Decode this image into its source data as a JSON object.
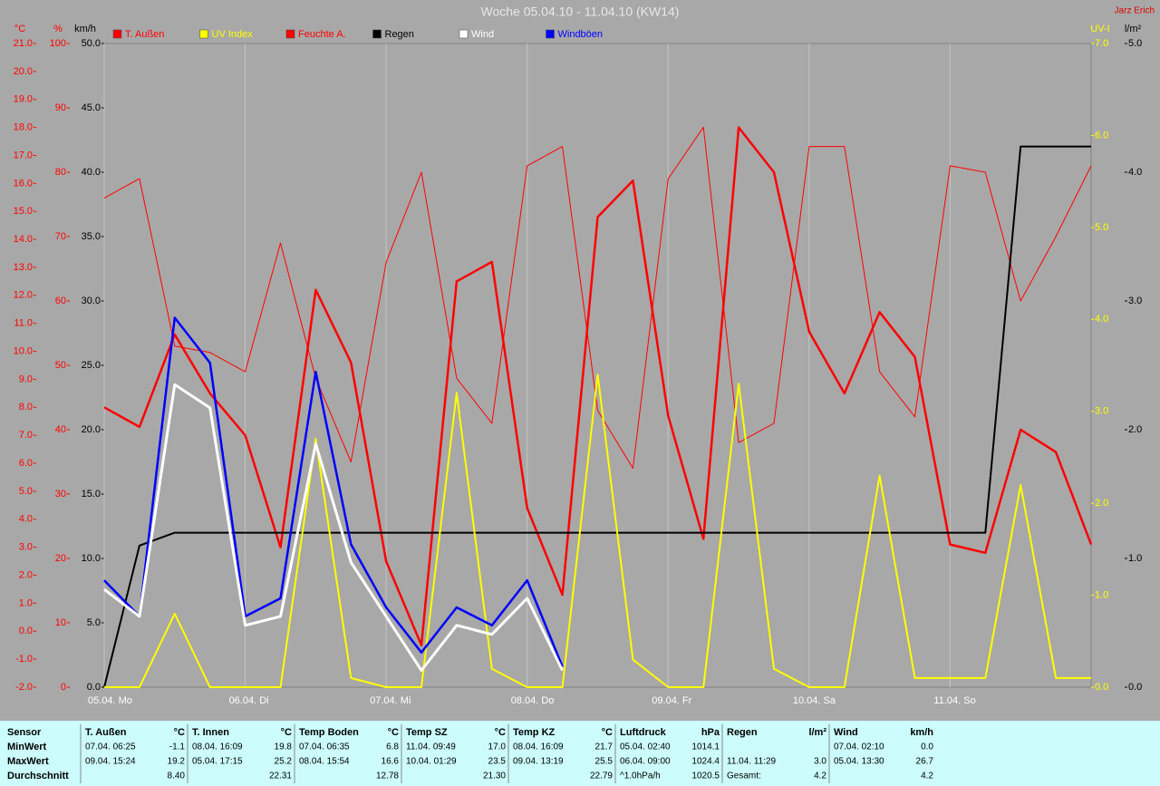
{
  "chart_data": {
    "type": "line",
    "title": "Woche 05.04.10 - 11.04.10 (KW14)",
    "author": "Jarz Erich",
    "xlim": [
      0,
      7
    ],
    "xticks": [
      {
        "value": 0,
        "label": "05.04. Mo"
      },
      {
        "value": 1,
        "label": "06.04. Di"
      },
      {
        "value": 2,
        "label": "07.04. Mi"
      },
      {
        "value": 3,
        "label": "08.04. Do"
      },
      {
        "value": 4,
        "label": "09.04. Fr"
      },
      {
        "value": 5,
        "label": "10.04. Sa"
      },
      {
        "value": 6,
        "label": "11.04. So"
      }
    ],
    "grid": true,
    "axes": [
      {
        "name": "°C",
        "lim": [
          -2,
          21
        ],
        "ticks": [
          {
            "value": -2,
            "label": "-2.0"
          },
          {
            "value": -1,
            "label": "-1.0"
          },
          {
            "value": 0,
            "label": "0.0"
          },
          {
            "value": 1,
            "label": "1.0"
          },
          {
            "value": 2,
            "label": "2.0"
          },
          {
            "value": 3,
            "label": "3.0"
          },
          {
            "value": 4,
            "label": "4.0"
          },
          {
            "value": 5,
            "label": "5.0"
          },
          {
            "value": 6,
            "label": "6.0"
          },
          {
            "value": 7,
            "label": "7.0"
          },
          {
            "value": 8,
            "label": "8.0"
          },
          {
            "value": 9,
            "label": "9.0"
          },
          {
            "value": 10,
            "label": "10.0"
          },
          {
            "value": 11,
            "label": "11.0"
          },
          {
            "value": 12,
            "label": "12.0"
          },
          {
            "value": 13,
            "label": "13.0"
          },
          {
            "value": 14,
            "label": "14.0"
          },
          {
            "value": 15,
            "label": "15.0"
          },
          {
            "value": 16,
            "label": "16.0"
          },
          {
            "value": 17,
            "label": "17.0"
          },
          {
            "value": 18,
            "label": "18.0"
          },
          {
            "value": 19,
            "label": "19.0"
          },
          {
            "value": 20,
            "label": "20.0"
          },
          {
            "value": 21,
            "label": "21.0"
          }
        ]
      },
      {
        "name": "%",
        "lim": [
          0,
          100
        ],
        "ticks": [
          0,
          10,
          20,
          30,
          40,
          50,
          60,
          70,
          80,
          90,
          100
        ]
      },
      {
        "name": "km/h",
        "lim": [
          0,
          50
        ],
        "ticks": [
          {
            "value": 0,
            "label": "0.0"
          },
          {
            "value": 5,
            "label": "5.0"
          },
          {
            "value": 10,
            "label": "10.0"
          },
          {
            "value": 15,
            "label": "15.0"
          },
          {
            "value": 20,
            "label": "20.0"
          },
          {
            "value": 25,
            "label": "25.0"
          },
          {
            "value": 30,
            "label": "30.0"
          },
          {
            "value": 35,
            "label": "35.0"
          },
          {
            "value": 40,
            "label": "40.0"
          },
          {
            "value": 45,
            "label": "45.0"
          },
          {
            "value": 50,
            "label": "50.0"
          }
        ]
      },
      {
        "name": "UV-I",
        "lim": [
          0,
          7
        ],
        "ticks": [
          {
            "value": 0,
            "label": "0.0"
          },
          {
            "value": 1,
            "label": "1.0"
          },
          {
            "value": 2,
            "label": "2.0"
          },
          {
            "value": 3,
            "label": "3.0"
          },
          {
            "value": 4,
            "label": "4.0"
          },
          {
            "value": 5,
            "label": "5.0"
          },
          {
            "value": 6,
            "label": "6.0"
          },
          {
            "value": 7,
            "label": "7.0"
          }
        ]
      },
      {
        "name": "l/m²",
        "lim": [
          0,
          5
        ],
        "ticks": [
          {
            "value": 0,
            "label": "0.0"
          },
          {
            "value": 1,
            "label": "1.0"
          },
          {
            "value": 2,
            "label": "2.0"
          },
          {
            "value": 3,
            "label": "3.0"
          },
          {
            "value": 4,
            "label": "4.0"
          },
          {
            "value": 5,
            "label": "5.0"
          }
        ]
      }
    ],
    "x": [
      0,
      0.25,
      0.5,
      0.75,
      1,
      1.25,
      1.5,
      1.75,
      2,
      2.25,
      2.5,
      2.75,
      3,
      3.25,
      3.5,
      3.75,
      4,
      4.25,
      4.5,
      4.75,
      5,
      5.25,
      5.5,
      5.75,
      6,
      6.25,
      6.5,
      6.75,
      7
    ],
    "series": [
      {
        "name": "T. Außen",
        "color": "#ff0000",
        "axis": 0,
        "values": [
          8.0,
          7.3,
          10.6,
          8.5,
          7.0,
          3.0,
          12.2,
          9.6,
          2.5,
          -0.5,
          12.5,
          13.2,
          4.4,
          1.3,
          14.8,
          16.1,
          7.7,
          3.3,
          18.0,
          16.4,
          10.7,
          8.5,
          11.4,
          9.8,
          3.1,
          2.8,
          7.2,
          6.4,
          3.1
        ]
      },
      {
        "name": "UV Index",
        "color": "#ffff00",
        "axis": 3,
        "values": [
          0,
          0,
          0.8,
          0,
          0,
          0,
          2.7,
          0.1,
          0,
          0,
          3.2,
          0.2,
          0,
          0,
          3.4,
          0.3,
          0,
          0,
          3.3,
          0.2,
          0,
          0,
          2.3,
          0.1,
          0.1,
          0.1,
          2.2,
          0.1,
          0.1
        ]
      },
      {
        "name": "Feuchte A.",
        "color": "#ff0000",
        "axis": 1,
        "values": [
          76,
          79,
          53,
          52,
          49,
          69,
          48,
          35,
          66,
          80,
          48,
          41,
          81,
          84,
          43,
          34,
          79,
          87,
          38,
          41,
          84,
          84,
          49,
          42,
          81,
          80,
          60,
          70,
          81
        ]
      },
      {
        "name": "Regen",
        "color": "#000000",
        "axis": 4,
        "values": [
          0,
          1.1,
          1.2,
          1.2,
          1.2,
          1.2,
          1.2,
          1.2,
          1.2,
          1.2,
          1.2,
          1.2,
          1.2,
          1.2,
          1.2,
          1.2,
          1.2,
          1.2,
          1.2,
          1.2,
          1.2,
          1.2,
          1.2,
          1.2,
          1.2,
          1.2,
          4.2,
          4.2,
          4.2
        ]
      },
      {
        "name": "Wind",
        "color": "#ffffff",
        "axis": 2,
        "values": [
          7.6,
          5.5,
          23.5,
          21.7,
          4.8,
          5.5,
          18.9,
          9.7,
          5.5,
          1.3,
          4.8,
          4.1,
          6.9,
          1.3,
          null,
          null,
          null,
          null,
          null,
          null,
          null,
          null,
          null,
          null,
          null,
          null,
          null,
          null,
          null
        ]
      },
      {
        "name": "Windböen",
        "color": "#0000ff",
        "axis": 2,
        "values": [
          8.3,
          5.5,
          28.7,
          25.2,
          5.5,
          6.9,
          24.5,
          11.1,
          6.2,
          2.7,
          6.2,
          4.8,
          8.3,
          1.6,
          null,
          null,
          null,
          null,
          null,
          null,
          null,
          null,
          null,
          null,
          null,
          null,
          null,
          null,
          null
        ]
      }
    ]
  },
  "stats": {
    "row_labels": [
      "Sensor",
      "MinWert",
      "MaxWert",
      "Durchschnitt"
    ],
    "columns": [
      {
        "name": "T. Außen",
        "unit": "°C",
        "min": [
          "07.04. 06:25",
          "-1.1"
        ],
        "max": [
          "09.04. 15:24",
          "19.2"
        ],
        "avg": [
          "8.40"
        ]
      },
      {
        "name": "T. Innen",
        "unit": "°C",
        "min": [
          "08.04. 16:09",
          "19.8"
        ],
        "max": [
          "05.04. 17:15",
          "25.2"
        ],
        "avg": [
          "22.31"
        ]
      },
      {
        "name": "Temp Boden",
        "unit": "°C",
        "min": [
          "07.04. 06:35",
          "6.8"
        ],
        "max": [
          "08.04. 15:54",
          "16.6"
        ],
        "avg": [
          "12.78"
        ]
      },
      {
        "name": "Temp SZ",
        "unit": "°C",
        "min": [
          "11.04. 09:49",
          "17.0"
        ],
        "max": [
          "10.04. 01:29",
          "23.5"
        ],
        "avg": [
          "21.30"
        ]
      },
      {
        "name": "Temp KZ",
        "unit": "°C",
        "min": [
          "08.04. 16:09",
          "21.7"
        ],
        "max": [
          "09.04. 13:19",
          "25.5"
        ],
        "avg": [
          "22.79"
        ]
      },
      {
        "name": "Luftdruck",
        "unit": "hPa",
        "min": [
          "05.04. 02:40",
          "1014.1"
        ],
        "max": [
          "06.04. 09:00",
          "1024.4"
        ],
        "avg": [
          "^1.0hPa/h",
          "1020.5"
        ]
      },
      {
        "name": "Regen",
        "unit": "l/m²",
        "min": [],
        "max": [
          "11.04. 11:29",
          "3.0"
        ],
        "avg": [
          "Gesamt:",
          "4.2"
        ]
      },
      {
        "name": "Wind",
        "unit": "km/h",
        "min": [
          "07.04. 02:10",
          "0.0"
        ],
        "max": [
          "05.04. 13:30",
          "26.7"
        ],
        "avg": [
          "4.2"
        ]
      }
    ]
  }
}
